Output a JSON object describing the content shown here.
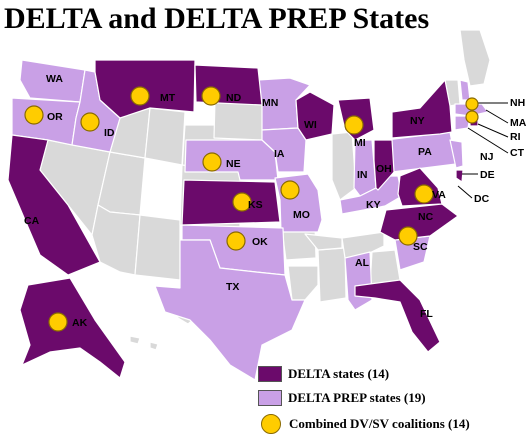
{
  "title": "DELTA and DELTA PREP States",
  "colors": {
    "delta": "#6b0a6b",
    "prep": "#c9a0e6",
    "other": "#d9d9d9",
    "coalition": "#ffcc00"
  },
  "legend": {
    "delta": "DELTA states (14)",
    "prep": "DELTA PREP states (19)",
    "coalition": "Combined DV/SV coalitions (14)"
  },
  "labels": {
    "WA": "WA",
    "OR": "OR",
    "ID": "ID",
    "MT": "MT",
    "ND": "ND",
    "MN": "MN",
    "WI": "WI",
    "MI": "MI",
    "NY": "NY",
    "CA": "CA",
    "NE": "NE",
    "IA": "IA",
    "IN": "IN",
    "OH": "OH",
    "PA": "PA",
    "NJ": "NJ",
    "DE": "DE",
    "DC": "DC",
    "KS": "KS",
    "MO": "MO",
    "KY": "KY",
    "VA": "VA",
    "NC": "NC",
    "OK": "OK",
    "TX": "TX",
    "AL": "AL",
    "SC": "SC",
    "FL": "FL",
    "AK": "AK",
    "NH": "NH",
    "MA": "MA",
    "RI": "RI",
    "CT": "CT"
  }
}
